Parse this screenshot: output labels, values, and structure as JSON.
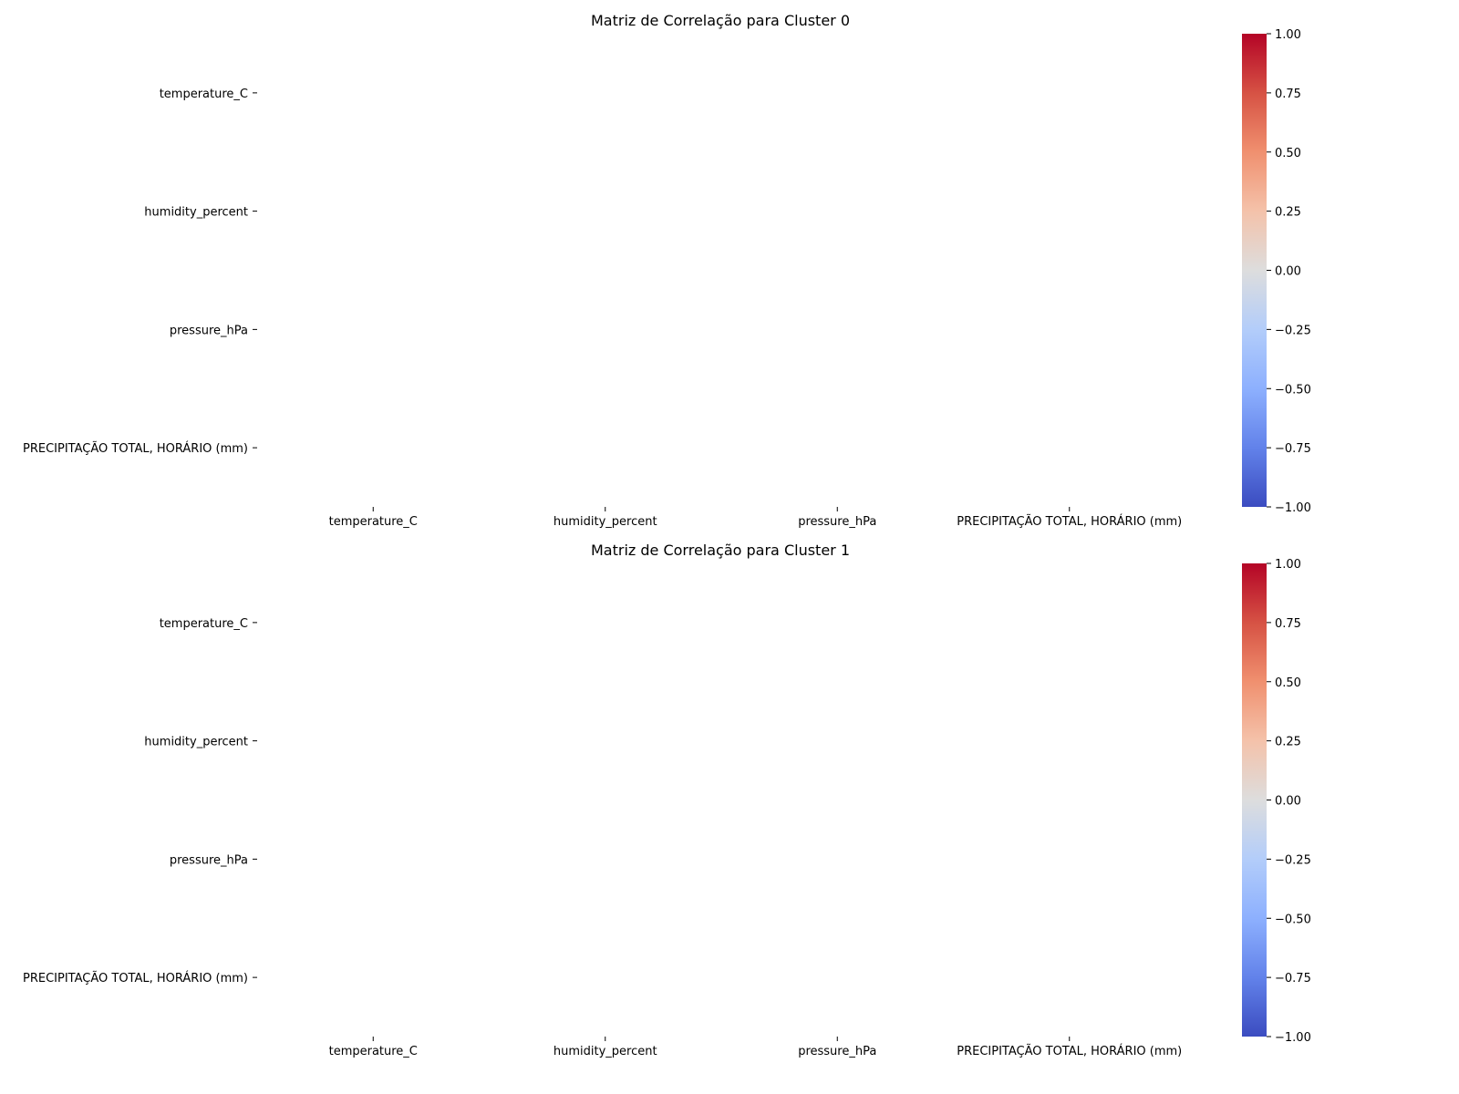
{
  "chart_data": [
    {
      "type": "heatmap",
      "title": "Matriz de Correlação para Cluster 0",
      "x_labels": [
        "temperature_C",
        "humidity_percent",
        "pressure_hPa",
        "PRECIPITAÇÃO TOTAL, HORÁRIO (mm)"
      ],
      "y_labels": [
        "temperature_C",
        "humidity_percent",
        "pressure_hPa",
        "PRECIPITAÇÃO TOTAL, HORÁRIO (mm)"
      ],
      "values": [
        [
          null,
          null,
          null,
          null
        ],
        [
          null,
          null,
          null,
          null
        ],
        [
          null,
          null,
          null,
          null
        ],
        [
          null,
          null,
          null,
          null
        ]
      ],
      "colormap": "coolwarm",
      "colorbar": {
        "vmin": -1.0,
        "vmax": 1.0,
        "ticks": [
          1.0,
          0.75,
          0.5,
          0.25,
          0.0,
          -0.25,
          -0.5,
          -0.75,
          -1.0
        ],
        "tick_labels": [
          "1.00",
          "0.75",
          "0.50",
          "0.25",
          "0.00",
          "−0.25",
          "−0.50",
          "−0.75",
          "−1.00"
        ]
      }
    },
    {
      "type": "heatmap",
      "title": "Matriz de Correlação para Cluster 1",
      "x_labels": [
        "temperature_C",
        "humidity_percent",
        "pressure_hPa",
        "PRECIPITAÇÃO TOTAL, HORÁRIO (mm)"
      ],
      "y_labels": [
        "temperature_C",
        "humidity_percent",
        "pressure_hPa",
        "PRECIPITAÇÃO TOTAL, HORÁRIO (mm)"
      ],
      "values": [
        [
          null,
          null,
          null,
          null
        ],
        [
          null,
          null,
          null,
          null
        ],
        [
          null,
          null,
          null,
          null
        ],
        [
          null,
          null,
          null,
          null
        ]
      ],
      "colormap": "coolwarm",
      "colorbar": {
        "vmin": -1.0,
        "vmax": 1.0,
        "ticks": [
          1.0,
          0.75,
          0.5,
          0.25,
          0.0,
          -0.25,
          -0.5,
          -0.75,
          -1.0
        ],
        "tick_labels": [
          "1.00",
          "0.75",
          "0.50",
          "0.25",
          "0.00",
          "−0.25",
          "−0.50",
          "−0.75",
          "−1.00"
        ]
      }
    }
  ],
  "colors": {
    "coolwarm_top": "#b40426",
    "coolwarm_mid": "#dddddd",
    "coolwarm_bottom": "#3b4cc0"
  }
}
